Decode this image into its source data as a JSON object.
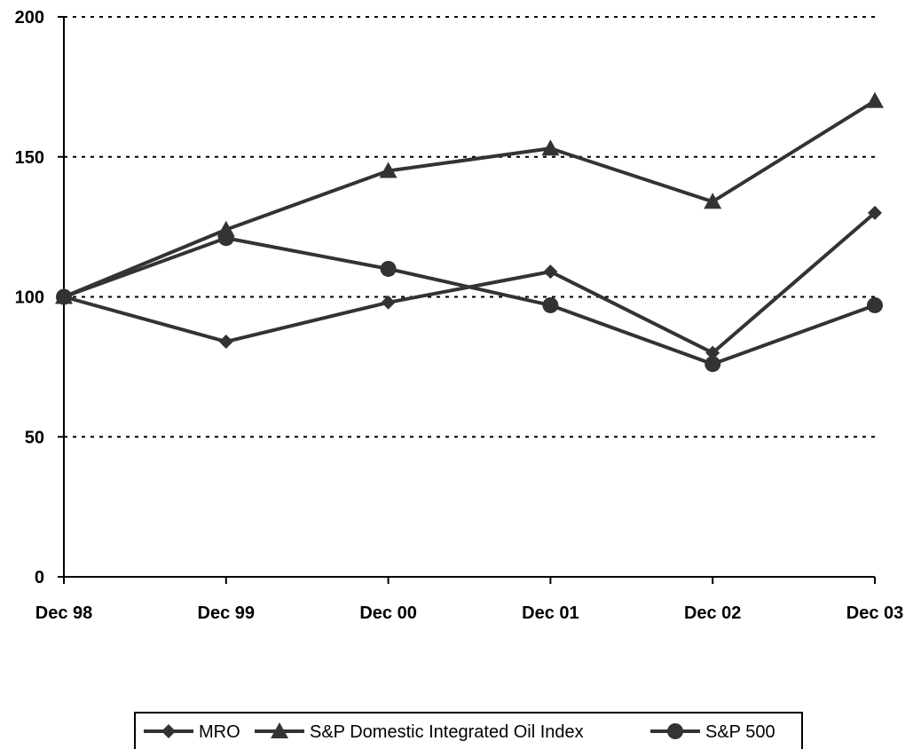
{
  "chart_data": {
    "type": "line",
    "categories": [
      "Dec 98",
      "Dec 99",
      "Dec 00",
      "Dec 01",
      "Dec 02",
      "Dec 03"
    ],
    "ylim": [
      0,
      200
    ],
    "yticks": [
      0,
      50,
      100,
      150,
      200
    ],
    "grid": "horizontal dotted",
    "legend_position": "bottom",
    "series": [
      {
        "name": "MRO",
        "marker": "diamond",
        "color": "#333333",
        "values": [
          100,
          84,
          98,
          109,
          80,
          130
        ]
      },
      {
        "name": "S&P Domestic Integrated Oil Index",
        "marker": "triangle",
        "color": "#333333",
        "values": [
          100,
          124,
          145,
          153,
          134,
          170
        ]
      },
      {
        "name": "S&P 500",
        "marker": "circle",
        "color": "#333333",
        "values": [
          100,
          121,
          110,
          97,
          76,
          97
        ]
      }
    ]
  }
}
